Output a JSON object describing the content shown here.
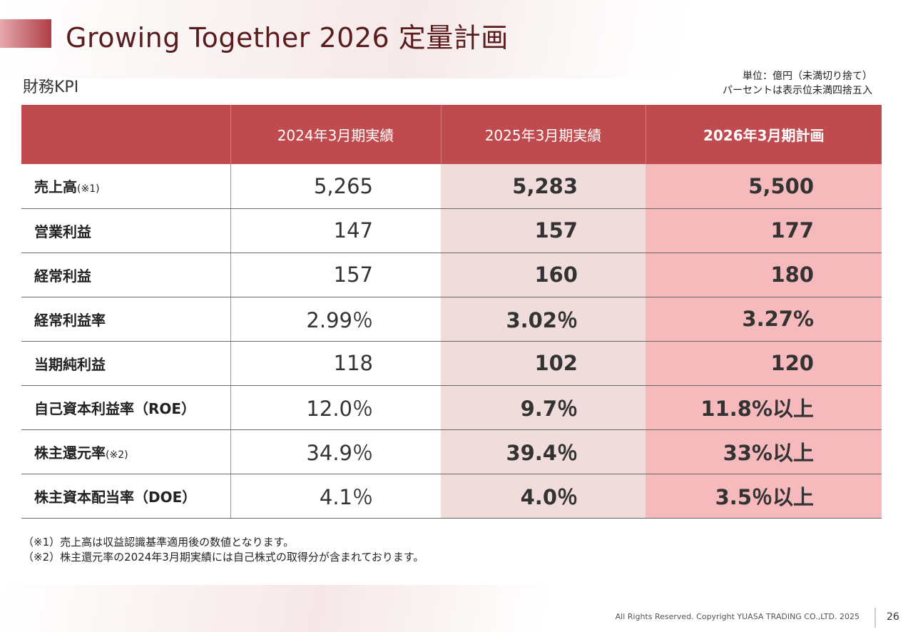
{
  "title": "Growing Together 2026 定量計画",
  "section_label": "財務KPI",
  "unit_note": {
    "line1": "単位：億円（未満切り捨て）",
    "line2": "パーセントは表示位未満四捨五入"
  },
  "table": {
    "headers": [
      "2024年3月期実績",
      "2025年3月期実績",
      "2026年3月期計画"
    ],
    "rows": [
      {
        "label": "売上高",
        "note": "(※1)",
        "v2024": "5,265",
        "v2025": "5,283",
        "v2026": "5,500"
      },
      {
        "label": "営業利益",
        "note": "",
        "v2024": "147",
        "v2025": "157",
        "v2026": "177"
      },
      {
        "label": "経常利益",
        "note": "",
        "v2024": "157",
        "v2025": "160",
        "v2026": "180"
      },
      {
        "label": "経常利益率",
        "note": "",
        "v2024": "2.99％",
        "v2025": "3.02％",
        "v2026": "3.27%"
      },
      {
        "label": "当期純利益",
        "note": "",
        "v2024": "118",
        "v2025": "102",
        "v2026": "120"
      },
      {
        "label": "自己資本利益率（ROE）",
        "note": "",
        "v2024": "12.0％",
        "v2025": "9.7％",
        "v2026": "11.8%以上"
      },
      {
        "label": "株主還元率",
        "note": "(※2)",
        "v2024": "34.9％",
        "v2025": "39.4％",
        "v2026": "33%以上"
      },
      {
        "label": "株主資本配当率（DOE）",
        "note": "",
        "v2024": "4.1％",
        "v2025": "4.0％",
        "v2026": "3.5％以上"
      }
    ]
  },
  "notes": [
    "（※1）売上高は収益認識基準適用後の数値となります。",
    "（※2）株主還元率の2024年3月期実績には自己株式の取得分が含まれております。"
  ],
  "footer": {
    "copyright": "All Rights Reserved. Copyright  YUASA TRADING CO.,LTD. 2025",
    "page_number": "26"
  },
  "colors": {
    "header_bg": "#c04b4f",
    "col2025_bg": "#f1dcdc",
    "col2026_bg": "#f6b9bc",
    "title_color": "#5a1c1c"
  }
}
